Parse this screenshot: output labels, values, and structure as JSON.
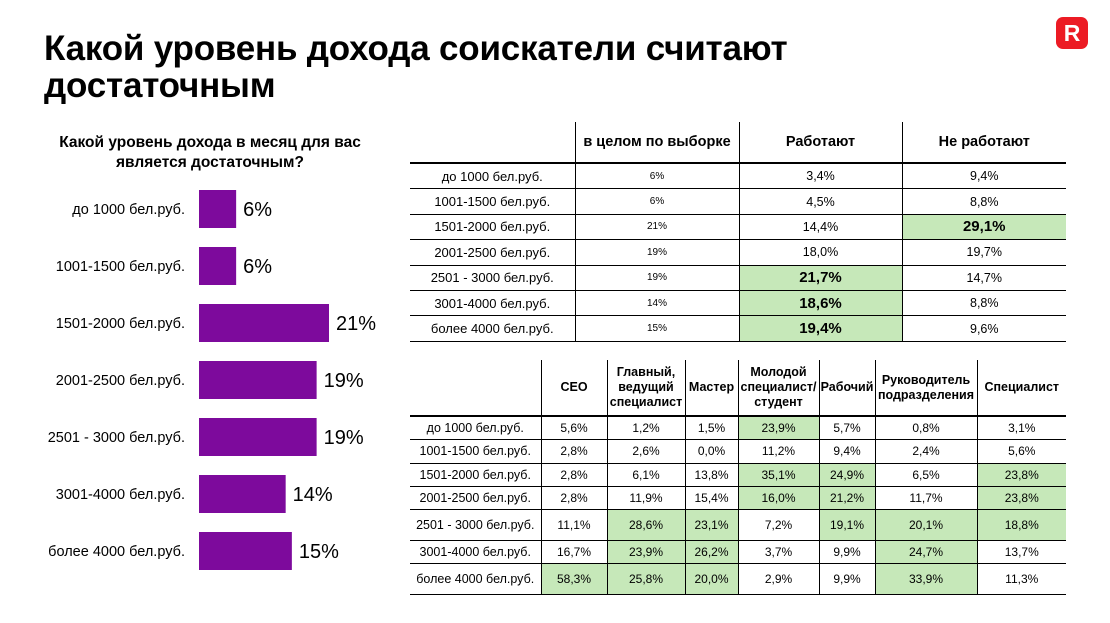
{
  "page": {
    "title": "Какой уровень дохода соискатели считают достаточным",
    "logo_letter": "R",
    "highlight_color": "#c6e8b9",
    "bar_color": "#7d0a9c",
    "brand_color": "#ec1b24"
  },
  "chart_data": {
    "type": "bar",
    "orientation": "horizontal",
    "title": "Какой уровень дохода в месяц для вас является достаточным?",
    "categories": [
      "до 1000 бел.руб.",
      "1001-1500 бел.руб.",
      "1501-2000 бел.руб.",
      "2001-2500 бел.руб.",
      "2501 - 3000 бел.руб.",
      "3001-4000 бел.руб.",
      "более 4000 бел.руб."
    ],
    "values": [
      6,
      6,
      21,
      19,
      19,
      14,
      15
    ],
    "value_labels": [
      "6%",
      "6%",
      "21%",
      "19%",
      "19%",
      "14%",
      "15%"
    ],
    "xlim": [
      0,
      21
    ],
    "grid": false,
    "legend": "none"
  },
  "table_employment": {
    "columns": [
      "в целом по выборке",
      "Работают",
      "Не работают"
    ],
    "rows": [
      {
        "label": "до 1000 бел.руб.",
        "cells": [
          "6%",
          "3,4%",
          "9,4%"
        ],
        "highlight": [
          false,
          false,
          false
        ]
      },
      {
        "label": "1001-1500 бел.руб.",
        "cells": [
          "6%",
          "4,5%",
          "8,8%"
        ],
        "highlight": [
          false,
          false,
          false
        ]
      },
      {
        "label": "1501-2000 бел.руб.",
        "cells": [
          "21%",
          "14,4%",
          "29,1%"
        ],
        "highlight": [
          false,
          false,
          true
        ]
      },
      {
        "label": "2001-2500 бел.руб.",
        "cells": [
          "19%",
          "18,0%",
          "19,7%"
        ],
        "highlight": [
          false,
          false,
          false
        ]
      },
      {
        "label": "2501 - 3000 бел.руб.",
        "cells": [
          "19%",
          "21,7%",
          "14,7%"
        ],
        "highlight": [
          false,
          true,
          false
        ]
      },
      {
        "label": "3001-4000 бел.руб.",
        "cells": [
          "14%",
          "18,6%",
          "8,8%"
        ],
        "highlight": [
          false,
          true,
          false
        ]
      },
      {
        "label": "более 4000 бел.руб.",
        "cells": [
          "15%",
          "19,4%",
          "9,6%"
        ],
        "highlight": [
          false,
          true,
          false
        ]
      }
    ]
  },
  "table_positions": {
    "columns": [
      "CEO",
      "Главный, ведущий специалист",
      "Мастер",
      "Молодой специалист/ студент",
      "Рабочий",
      "Руководитель подразделения",
      "Специалист"
    ],
    "rows": [
      {
        "label": "до 1000 бел.руб.",
        "cells": [
          "5,6%",
          "1,2%",
          "1,5%",
          "23,9%",
          "5,7%",
          "0,8%",
          "3,1%"
        ],
        "highlight": [
          false,
          false,
          false,
          true,
          false,
          false,
          false
        ]
      },
      {
        "label": "1001-1500 бел.руб.",
        "cells": [
          "2,8%",
          "2,6%",
          "0,0%",
          "11,2%",
          "9,4%",
          "2,4%",
          "5,6%"
        ],
        "highlight": [
          false,
          false,
          false,
          false,
          false,
          false,
          false
        ]
      },
      {
        "label": "1501-2000 бел.руб.",
        "cells": [
          "2,8%",
          "6,1%",
          "13,8%",
          "35,1%",
          "24,9%",
          "6,5%",
          "23,8%"
        ],
        "highlight": [
          false,
          false,
          false,
          true,
          true,
          false,
          true
        ]
      },
      {
        "label": "2001-2500 бел.руб.",
        "cells": [
          "2,8%",
          "11,9%",
          "15,4%",
          "16,0%",
          "21,2%",
          "11,7%",
          "23,8%"
        ],
        "highlight": [
          false,
          false,
          false,
          true,
          true,
          false,
          true
        ]
      },
      {
        "label": "2501 - 3000 бел.руб.",
        "cells": [
          "11,1%",
          "28,6%",
          "23,1%",
          "7,2%",
          "19,1%",
          "20,1%",
          "18,8%"
        ],
        "highlight": [
          false,
          true,
          true,
          false,
          true,
          true,
          true
        ]
      },
      {
        "label": "3001-4000 бел.руб.",
        "cells": [
          "16,7%",
          "23,9%",
          "26,2%",
          "3,7%",
          "9,9%",
          "24,7%",
          "13,7%"
        ],
        "highlight": [
          false,
          true,
          true,
          false,
          false,
          true,
          false
        ]
      },
      {
        "label": "более 4000 бел.руб.",
        "cells": [
          "58,3%",
          "25,8%",
          "20,0%",
          "2,9%",
          "9,9%",
          "33,9%",
          "11,3%"
        ],
        "highlight": [
          true,
          true,
          true,
          false,
          false,
          true,
          false
        ]
      }
    ]
  }
}
